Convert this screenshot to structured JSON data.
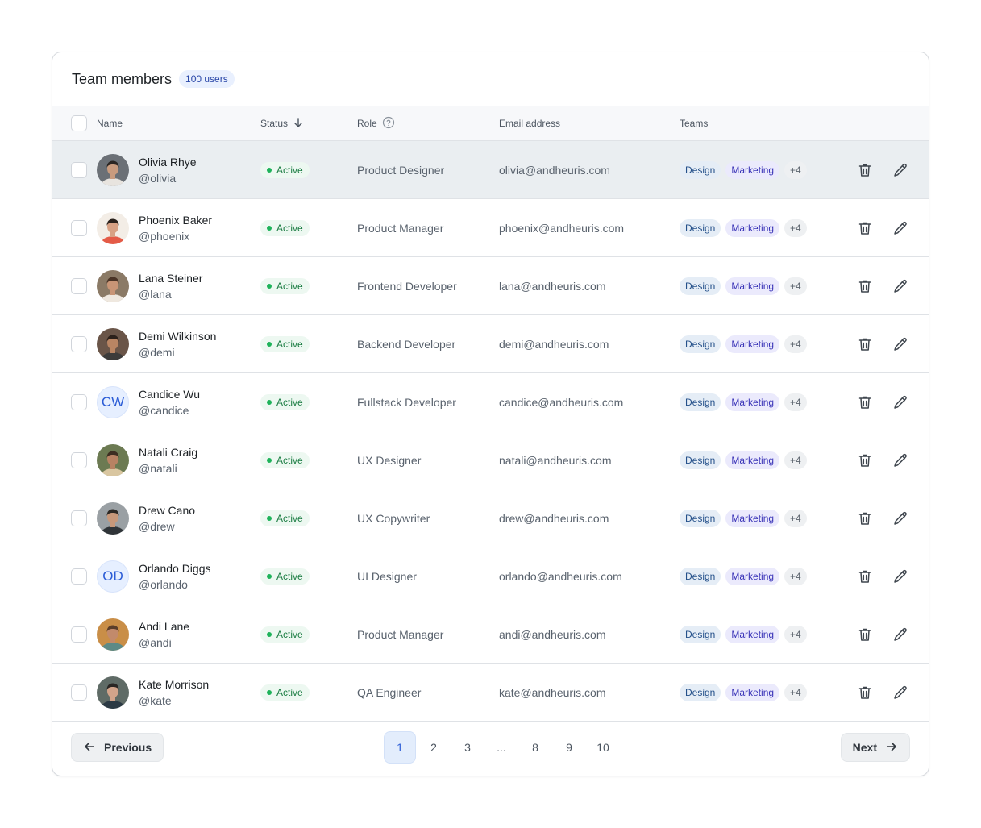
{
  "header": {
    "title": "Team members",
    "count_badge": "100 users"
  },
  "columns": {
    "name": "Name",
    "status": "Status",
    "role": "Role",
    "email": "Email address",
    "teams": "Teams"
  },
  "rows": [
    {
      "name": "Olivia Rhye",
      "handle": "@olivia",
      "status": "Active",
      "role": "Product Designer",
      "email": "olivia@andheuris.com",
      "teams": [
        "Design",
        "Marketing",
        "+4"
      ],
      "avatar": "photo",
      "initials": ""
    },
    {
      "name": "Phoenix Baker",
      "handle": "@phoenix",
      "status": "Active",
      "role": "Product Manager",
      "email": "phoenix@andheuris.com",
      "teams": [
        "Design",
        "Marketing",
        "+4"
      ],
      "avatar": "photo",
      "initials": ""
    },
    {
      "name": "Lana Steiner",
      "handle": "@lana",
      "status": "Active",
      "role": "Frontend Developer",
      "email": "lana@andheuris.com",
      "teams": [
        "Design",
        "Marketing",
        "+4"
      ],
      "avatar": "photo",
      "initials": ""
    },
    {
      "name": "Demi Wilkinson",
      "handle": "@demi",
      "status": "Active",
      "role": "Backend Developer",
      "email": "demi@andheuris.com",
      "teams": [
        "Design",
        "Marketing",
        "+4"
      ],
      "avatar": "photo",
      "initials": ""
    },
    {
      "name": "Candice Wu",
      "handle": "@candice",
      "status": "Active",
      "role": "Fullstack Developer",
      "email": "candice@andheuris.com",
      "teams": [
        "Design",
        "Marketing",
        "+4"
      ],
      "avatar": "initials",
      "initials": "CW"
    },
    {
      "name": "Natali Craig",
      "handle": "@natali",
      "status": "Active",
      "role": "UX Designer",
      "email": "natali@andheuris.com",
      "teams": [
        "Design",
        "Marketing",
        "+4"
      ],
      "avatar": "photo",
      "initials": ""
    },
    {
      "name": "Drew Cano",
      "handle": "@drew",
      "status": "Active",
      "role": "UX Copywriter",
      "email": "drew@andheuris.com",
      "teams": [
        "Design",
        "Marketing",
        "+4"
      ],
      "avatar": "photo",
      "initials": ""
    },
    {
      "name": "Orlando Diggs",
      "handle": "@orlando",
      "status": "Active",
      "role": "UI Designer",
      "email": "orlando@andheuris.com",
      "teams": [
        "Design",
        "Marketing",
        "+4"
      ],
      "avatar": "initials",
      "initials": "OD"
    },
    {
      "name": "Andi Lane",
      "handle": "@andi",
      "status": "Active",
      "role": "Product Manager",
      "email": "andi@andheuris.com",
      "teams": [
        "Design",
        "Marketing",
        "+4"
      ],
      "avatar": "photo",
      "initials": ""
    },
    {
      "name": "Kate Morrison",
      "handle": "@kate",
      "status": "Active",
      "role": "QA Engineer",
      "email": "kate@andheuris.com",
      "teams": [
        "Design",
        "Marketing",
        "+4"
      ],
      "avatar": "photo",
      "initials": ""
    }
  ],
  "pagination": {
    "previous_label": "Previous",
    "next_label": "Next",
    "pages": [
      "1",
      "2",
      "3",
      "...",
      "8",
      "9",
      "10"
    ],
    "current_page": "1"
  },
  "colors": {
    "accent": "#2b5cd6",
    "status_active": "#1eb35a",
    "selected_row": "#eaeef1"
  },
  "icons": [
    "arrow-down-icon",
    "help-circle-icon",
    "trash-icon",
    "pencil-icon",
    "arrow-left-icon",
    "arrow-right-icon"
  ]
}
